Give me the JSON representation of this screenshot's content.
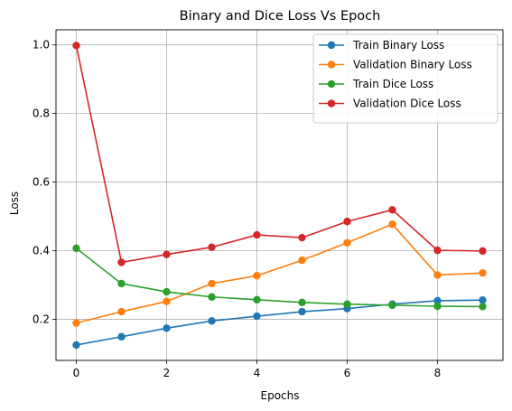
{
  "chart_data": {
    "type": "line",
    "title": "Binary and Dice Loss Vs Epoch",
    "xlabel": "Epochs",
    "ylabel": "Loss",
    "x": [
      0,
      1,
      2,
      3,
      4,
      5,
      6,
      7,
      8,
      9
    ],
    "xlim": [
      -0.45,
      9.45
    ],
    "ylim": [
      0.08,
      1.044
    ],
    "xticks": [
      0,
      2,
      4,
      6,
      8
    ],
    "yticks": [
      0.2,
      0.4,
      0.6,
      0.8,
      1.0
    ],
    "xtick_labels": [
      "0",
      "2",
      "4",
      "6",
      "8"
    ],
    "ytick_labels": [
      "0.2",
      "0.4",
      "0.6",
      "0.8",
      "1.0"
    ],
    "grid": true,
    "legend": "top-right",
    "series": [
      {
        "name": "Train Binary Loss",
        "color": "#1f77b4",
        "values": [
          0.125,
          0.149,
          0.174,
          0.195,
          0.209,
          0.222,
          0.231,
          0.244,
          0.254,
          0.256
        ]
      },
      {
        "name": "Validation Binary Loss",
        "color": "#ff7f0e",
        "values": [
          0.189,
          0.222,
          0.252,
          0.304,
          0.327,
          0.372,
          0.423,
          0.477,
          0.329,
          0.335
        ]
      },
      {
        "name": "Train Dice Loss",
        "color": "#2ca02c",
        "values": [
          0.407,
          0.304,
          0.28,
          0.265,
          0.257,
          0.249,
          0.244,
          0.241,
          0.238,
          0.237
        ]
      },
      {
        "name": "Validation Dice Loss",
        "color": "#d62728",
        "values": [
          0.998,
          0.366,
          0.389,
          0.41,
          0.446,
          0.438,
          0.485,
          0.519,
          0.401,
          0.399
        ]
      }
    ]
  }
}
